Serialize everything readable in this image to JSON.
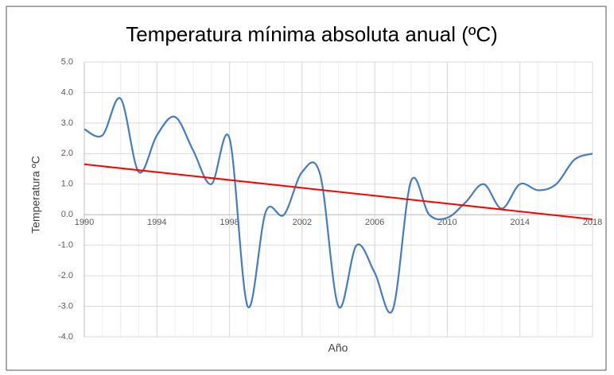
{
  "chart_data": {
    "type": "line",
    "title": "Temperatura mínima absoluta anual (ºC)",
    "xlabel": "Año",
    "ylabel": "Temperatura ºC",
    "x": [
      1990,
      1991,
      1992,
      1993,
      1994,
      1995,
      1996,
      1997,
      1998,
      1999,
      2000,
      2001,
      2002,
      2003,
      2004,
      2005,
      2006,
      2007,
      2008,
      2009,
      2010,
      2011,
      2012,
      2013,
      2014,
      2015,
      2016,
      2017,
      2018
    ],
    "series": [
      {
        "color": "#4a7ebb",
        "smooth": true,
        "values": [
          2.8,
          2.6,
          3.8,
          1.4,
          2.6,
          3.2,
          2.1,
          1.0,
          2.5,
          -3.0,
          0.1,
          0.0,
          1.4,
          1.3,
          -3.0,
          -1.0,
          -1.9,
          -3.1,
          1.1,
          0.0,
          -0.1,
          0.4,
          1.0,
          0.2,
          1.0,
          0.8,
          1.0,
          1.8,
          2.0
        ]
      }
    ],
    "trend": {
      "color": "#ff0000",
      "x": [
        1990,
        2018
      ],
      "values": [
        1.65,
        -0.15
      ]
    },
    "xlim": [
      1990,
      2018
    ],
    "xticks": [
      1990,
      1994,
      1998,
      2002,
      2006,
      2010,
      2014,
      2018
    ],
    "ylim": [
      -4,
      5
    ],
    "yticks": [
      {
        "value": -4,
        "label": "-4.0"
      },
      {
        "value": -3,
        "label": "-3.0"
      },
      {
        "value": -2,
        "label": "-2.0"
      },
      {
        "value": -1,
        "label": "-1.0"
      },
      {
        "value": 0,
        "label": "0.0"
      },
      {
        "value": 1,
        "label": "1.0"
      },
      {
        "value": 2,
        "label": "2.0"
      },
      {
        "value": 3,
        "label": "3.0"
      },
      {
        "value": 4,
        "label": "4.0"
      },
      {
        "value": 5,
        "label": "5.0"
      }
    ],
    "grid": true
  }
}
